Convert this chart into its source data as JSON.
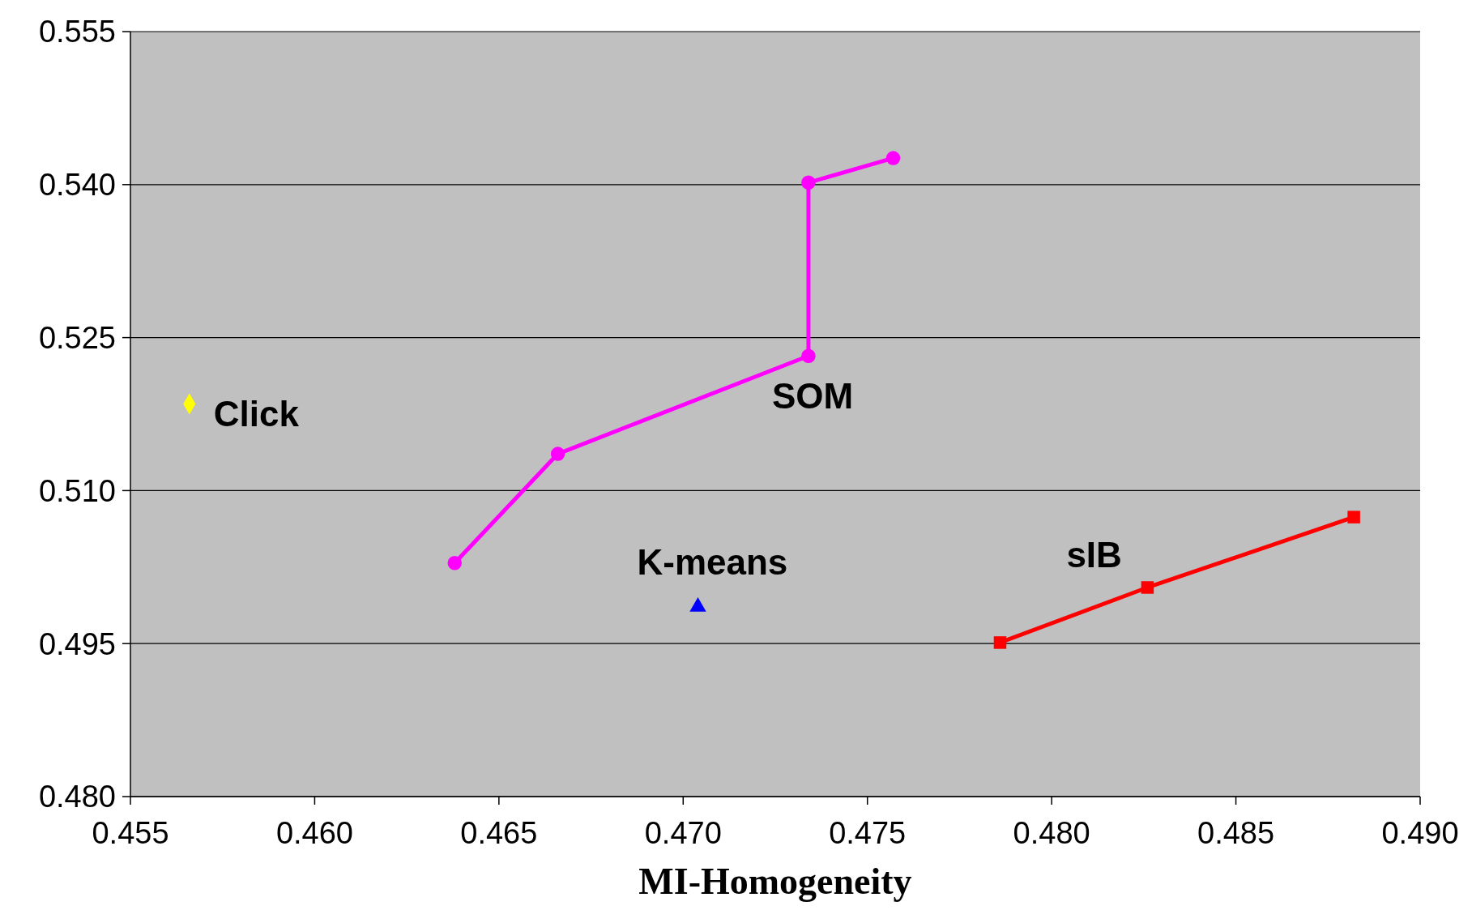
{
  "chart_data": {
    "type": "line",
    "xlabel": "MI-Homogeneity",
    "xlim": [
      0.455,
      0.49
    ],
    "ylim": [
      0.48,
      0.555
    ],
    "xticks": [
      {
        "value": 0.455,
        "label": "0.455"
      },
      {
        "value": 0.46,
        "label": "0.460"
      },
      {
        "value": 0.465,
        "label": "0.465"
      },
      {
        "value": 0.47,
        "label": "0.470"
      },
      {
        "value": 0.475,
        "label": "0.475"
      },
      {
        "value": 0.48,
        "label": "0.480"
      },
      {
        "value": 0.485,
        "label": "0.485"
      },
      {
        "value": 0.49,
        "label": "0.490"
      }
    ],
    "yticks": [
      {
        "value": 0.48,
        "label": "0.480"
      },
      {
        "value": 0.495,
        "label": "0.495"
      },
      {
        "value": 0.51,
        "label": "0.510"
      },
      {
        "value": 0.525,
        "label": "0.525"
      },
      {
        "value": 0.54,
        "label": "0.540"
      },
      {
        "value": 0.555,
        "label": "0.555"
      }
    ],
    "grid": "y",
    "series": [
      {
        "name": "Click",
        "type": "scatter",
        "marker": "diamond",
        "color": "#ffff00",
        "x": [
          0.4566
        ],
        "values": [
          0.5185
        ]
      },
      {
        "name": "SOM",
        "marker": "circle",
        "color": "#ff00ff",
        "x": [
          0.4638,
          0.4666,
          0.4734,
          0.4734,
          0.4757
        ],
        "values": [
          0.5029,
          0.5136,
          0.5232,
          0.5402,
          0.5426
        ]
      },
      {
        "name": "K-means",
        "type": "scatter",
        "marker": "triangle",
        "color": "#0000ff",
        "x": [
          0.4704
        ],
        "values": [
          0.4986
        ]
      },
      {
        "name": "sIB",
        "marker": "square",
        "color": "#ff0000",
        "x": [
          0.4786,
          0.4826,
          0.4882
        ],
        "values": [
          0.4951,
          0.5005,
          0.5074
        ]
      }
    ]
  }
}
